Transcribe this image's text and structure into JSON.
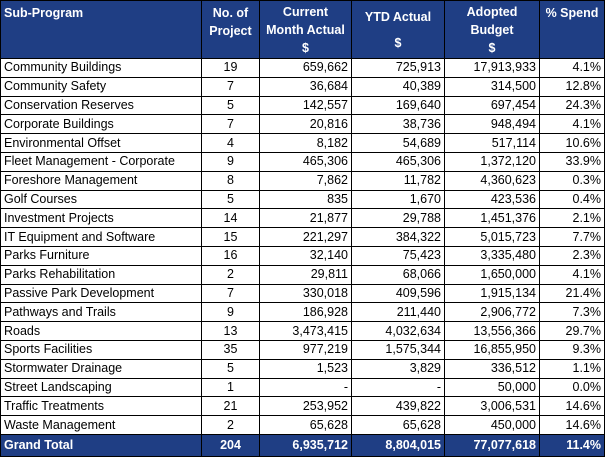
{
  "headers": {
    "sub_program": "Sub-Program",
    "no_project_1": "No. of",
    "no_project_2": "Project",
    "current_1": "Current",
    "current_2": "Month Actual",
    "current_3": "$",
    "ytd_1": "YTD Actual",
    "ytd_2": "$",
    "adopted_1": "Adopted",
    "adopted_2": "Budget",
    "adopted_3": "$",
    "spend": "% Spend"
  },
  "rows": [
    {
      "name": "Community Buildings",
      "projects": "19",
      "current": "659,662",
      "ytd": "725,913",
      "budget": "17,913,933",
      "spend": "4.1%"
    },
    {
      "name": "Community Safety",
      "projects": "7",
      "current": "36,684",
      "ytd": "40,389",
      "budget": "314,500",
      "spend": "12.8%"
    },
    {
      "name": "Conservation Reserves",
      "projects": "5",
      "current": "142,557",
      "ytd": "169,640",
      "budget": "697,454",
      "spend": "24.3%"
    },
    {
      "name": "Corporate Buildings",
      "projects": "7",
      "current": "20,816",
      "ytd": "38,736",
      "budget": "948,494",
      "spend": "4.1%"
    },
    {
      "name": "Environmental Offset",
      "projects": "4",
      "current": "8,182",
      "ytd": "54,689",
      "budget": "517,114",
      "spend": "10.6%"
    },
    {
      "name": "Fleet Management - Corporate",
      "projects": "9",
      "current": "465,306",
      "ytd": "465,306",
      "budget": "1,372,120",
      "spend": "33.9%"
    },
    {
      "name": "Foreshore Management",
      "projects": "8",
      "current": "7,862",
      "ytd": "11,782",
      "budget": "4,360,623",
      "spend": "0.3%"
    },
    {
      "name": "Golf Courses",
      "projects": "5",
      "current": "835",
      "ytd": "1,670",
      "budget": "423,536",
      "spend": "0.4%"
    },
    {
      "name": "Investment Projects",
      "projects": "14",
      "current": "21,877",
      "ytd": "29,788",
      "budget": "1,451,376",
      "spend": "2.1%"
    },
    {
      "name": "IT Equipment and Software",
      "projects": "15",
      "current": "221,297",
      "ytd": "384,322",
      "budget": "5,015,723",
      "spend": "7.7%"
    },
    {
      "name": "Parks Furniture",
      "projects": "16",
      "current": "32,140",
      "ytd": "75,423",
      "budget": "3,335,480",
      "spend": "2.3%"
    },
    {
      "name": "Parks Rehabilitation",
      "projects": "2",
      "current": "29,811",
      "ytd": "68,066",
      "budget": "1,650,000",
      "spend": "4.1%"
    },
    {
      "name": "Passive Park Development",
      "projects": "7",
      "current": "330,018",
      "ytd": "409,596",
      "budget": "1,915,134",
      "spend": "21.4%"
    },
    {
      "name": "Pathways and Trails",
      "projects": "9",
      "current": "186,928",
      "ytd": "211,440",
      "budget": "2,906,772",
      "spend": "7.3%"
    },
    {
      "name": "Roads",
      "projects": "13",
      "current": "3,473,415",
      "ytd": "4,032,634",
      "budget": "13,556,366",
      "spend": "29.7%"
    },
    {
      "name": "Sports Facilities",
      "projects": "35",
      "current": "977,219",
      "ytd": "1,575,344",
      "budget": "16,855,950",
      "spend": "9.3%"
    },
    {
      "name": "Stormwater Drainage",
      "projects": "5",
      "current": "1,523",
      "ytd": "3,829",
      "budget": "336,512",
      "spend": "1.1%"
    },
    {
      "name": "Street Landscaping",
      "projects": "1",
      "current": "-",
      "ytd": "-",
      "budget": "50,000",
      "spend": "0.0%"
    },
    {
      "name": "Traffic Treatments",
      "projects": "21",
      "current": "253,952",
      "ytd": "439,822",
      "budget": "3,006,531",
      "spend": "14.6%"
    },
    {
      "name": "Waste Management",
      "projects": "2",
      "current": "65,628",
      "ytd": "65,628",
      "budget": "450,000",
      "spend": "14.6%"
    }
  ],
  "total": {
    "name": "Grand Total",
    "projects": "204",
    "current": "6,935,712",
    "ytd": "8,804,015",
    "budget": "77,077,618",
    "spend": "11.4%"
  },
  "colors": {
    "header_bg": "#1f3e84",
    "header_text": "#ffffff",
    "grid": "#000000"
  }
}
